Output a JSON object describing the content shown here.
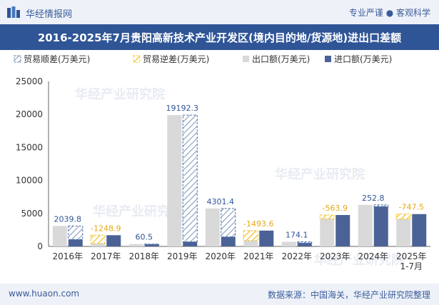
{
  "header": {
    "site_name": "华经情报网",
    "slogan": "专业严谨 ● 客观科学",
    "title": "2016-2025年7月贵阳高新技术产业开发区(境内目的地/货源地)进出口差额"
  },
  "footer": {
    "url": "www.huaon.com",
    "source": "数据来源：中国海关，华经产业研究院整理"
  },
  "watermark": "华经产业研究院",
  "colors": {
    "surplus": "#4a6fa5",
    "deficit": "#f0c020",
    "export": "#d9d9d9",
    "import": "#4a6296",
    "label_surplus": "#2f5597",
    "label_deficit": "#e6a817"
  },
  "chart_data": {
    "type": "bar",
    "categories": [
      "2016年",
      "2017年",
      "2018年",
      "2019年",
      "2020年",
      "2021年",
      "2022年",
      "2023年",
      "2024年",
      "2025年\n1-7月"
    ],
    "legend": [
      "贸易顺差(万美元)",
      "贸易逆差(万美元)",
      "出口额(万美元)",
      "进口额(万美元)"
    ],
    "series": [
      {
        "name": "出口额(万美元)",
        "values": [
          3100,
          450,
          360,
          19900,
          5750,
          900,
          700,
          4200,
          6300,
          4150
        ]
      },
      {
        "name": "进口额(万美元)",
        "values": [
          1060,
          1700,
          300,
          710,
          1450,
          2400,
          530,
          4760,
          6050,
          4900
        ]
      }
    ],
    "balance": [
      2039.8,
      -1248.9,
      60.5,
      19192.3,
      4301.4,
      -1493.6,
      174.1,
      -563.9,
      252.8,
      -747.5
    ],
    "balance_labels": [
      "2039.8",
      "-1248.9",
      "60.5",
      "19192.3",
      "4301.4",
      "-1493.6",
      "174.1",
      "-563.9",
      "252.8",
      "-747.5"
    ],
    "ylim": [
      0,
      25000
    ],
    "yticks": [
      "0",
      "5000",
      "10000",
      "15000",
      "20000",
      "25000"
    ],
    "legend_position": "top",
    "grid": false
  }
}
